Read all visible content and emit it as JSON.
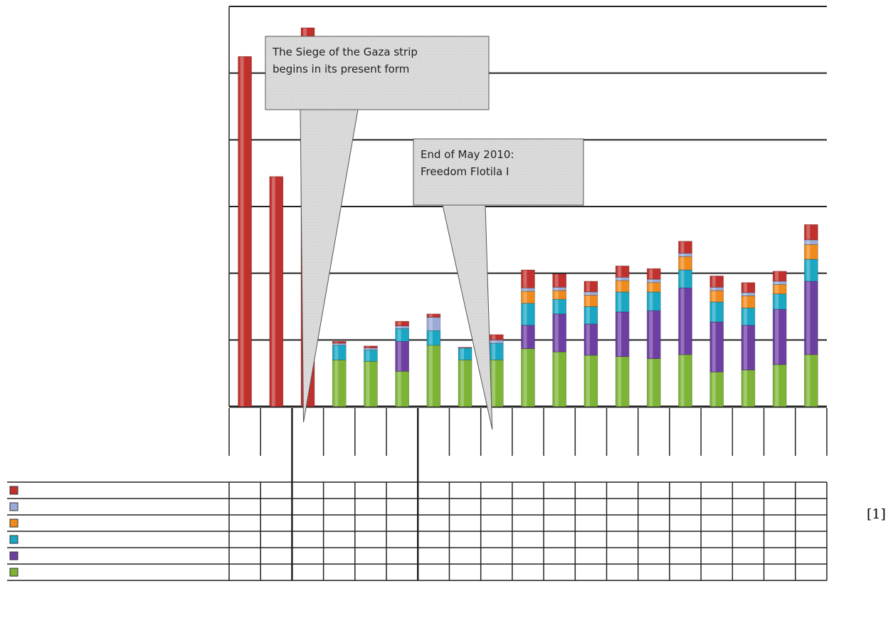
{
  "chart_data": {
    "type": "bar",
    "stacked": true,
    "title": "",
    "xlabel": "",
    "ylabel": "",
    "ylim": [
      0,
      6
    ],
    "grid": true,
    "legend": "table-left",
    "category_count": 19,
    "series": [
      {
        "key": "s1",
        "color": "#7db436",
        "values": [
          0,
          0,
          0,
          0.7,
          0.68,
          0.53,
          0.92,
          0.7,
          0.7,
          0.87,
          0.82,
          0.77,
          0.75,
          0.72,
          0.78,
          0.52,
          0.55,
          0.63,
          0.78
        ]
      },
      {
        "key": "s2",
        "color": "#6e3fa3",
        "values": [
          0,
          0,
          0,
          0,
          0,
          0.45,
          0,
          0,
          0,
          0.35,
          0.57,
          0.47,
          0.67,
          0.72,
          1.0,
          0.75,
          0.67,
          0.83,
          1.1
        ]
      },
      {
        "key": "s3",
        "color": "#1aa7c4",
        "values": [
          0,
          0,
          0,
          0.22,
          0.17,
          0.19,
          0.22,
          0.18,
          0.25,
          0.33,
          0.22,
          0.26,
          0.3,
          0.28,
          0.27,
          0.3,
          0.26,
          0.23,
          0.33
        ]
      },
      {
        "key": "s4",
        "color": "#f08a1c",
        "values": [
          0,
          0,
          0,
          0,
          0,
          0,
          0,
          0,
          0,
          0.18,
          0.13,
          0.17,
          0.17,
          0.14,
          0.2,
          0.17,
          0.18,
          0.14,
          0.22
        ]
      },
      {
        "key": "s5",
        "color": "#9aabd6",
        "values": [
          0,
          0,
          0,
          0.03,
          0.03,
          0.04,
          0.2,
          0,
          0.05,
          0.05,
          0.05,
          0.05,
          0.05,
          0.05,
          0.05,
          0.05,
          0.05,
          0.05,
          0.07
        ]
      },
      {
        "key": "s6",
        "color": "#c0302c",
        "values": [
          5.25,
          3.45,
          5.68,
          0.03,
          0.03,
          0.07,
          0.05,
          0.01,
          0.08,
          0.27,
          0.2,
          0.16,
          0.17,
          0.16,
          0.18,
          0.17,
          0.15,
          0.15,
          0.23
        ]
      }
    ],
    "annotations": [
      {
        "text_lines": [
          "The Siege of the Gaza strip",
          "begins in its present form"
        ],
        "points_to_category": 2
      },
      {
        "text_lines": [
          "End of May 2010:",
          "Freedom Flotila I"
        ],
        "points_to_category": 8
      }
    ]
  },
  "footnote": "[1]"
}
